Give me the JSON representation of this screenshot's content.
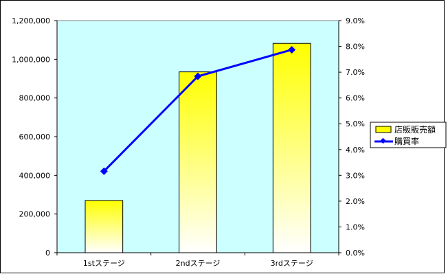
{
  "chart_data": {
    "type": "bar",
    "categories": [
      "1stステージ",
      "2ndステージ",
      "3rdステージ"
    ],
    "series": [
      {
        "name": "店販販売額",
        "kind": "bar",
        "axis": "left",
        "values": [
          270000,
          935000,
          1082000
        ]
      },
      {
        "name": "購買率",
        "kind": "line",
        "axis": "right",
        "values": [
          0.0316,
          0.0684,
          0.0787
        ]
      }
    ],
    "y_left": {
      "range": [
        0,
        1200000
      ],
      "ticks": [
        {
          "value": 0,
          "label": "0"
        },
        {
          "value": 200000,
          "label": "200,000"
        },
        {
          "value": 400000,
          "label": "400,000"
        },
        {
          "value": 600000,
          "label": "600,000"
        },
        {
          "value": 800000,
          "label": "800,000"
        },
        {
          "value": 1000000,
          "label": "1,000,000"
        },
        {
          "value": 1200000,
          "label": "1,200,000"
        }
      ]
    },
    "y_right": {
      "range": [
        0,
        0.09
      ],
      "ticks": [
        {
          "value": 0,
          "label": "0.0%"
        },
        {
          "value": 0.01,
          "label": "1.0%"
        },
        {
          "value": 0.02,
          "label": "2.0%"
        },
        {
          "value": 0.03,
          "label": "3.0%"
        },
        {
          "value": 0.04,
          "label": "4.0%"
        },
        {
          "value": 0.05,
          "label": "5.0%"
        },
        {
          "value": 0.06,
          "label": "6.0%"
        },
        {
          "value": 0.07,
          "label": "7.0%"
        },
        {
          "value": 0.08,
          "label": "8.0%"
        },
        {
          "value": 0.09,
          "label": "9.0%"
        }
      ]
    },
    "legend_position": "right",
    "grid": false,
    "colors": {
      "plot_bg": "#ccffff",
      "bar_top": "#ffff00",
      "bar_bottom": "#ffffff",
      "bar_stroke": "#000000",
      "line": "#0000ff"
    }
  }
}
